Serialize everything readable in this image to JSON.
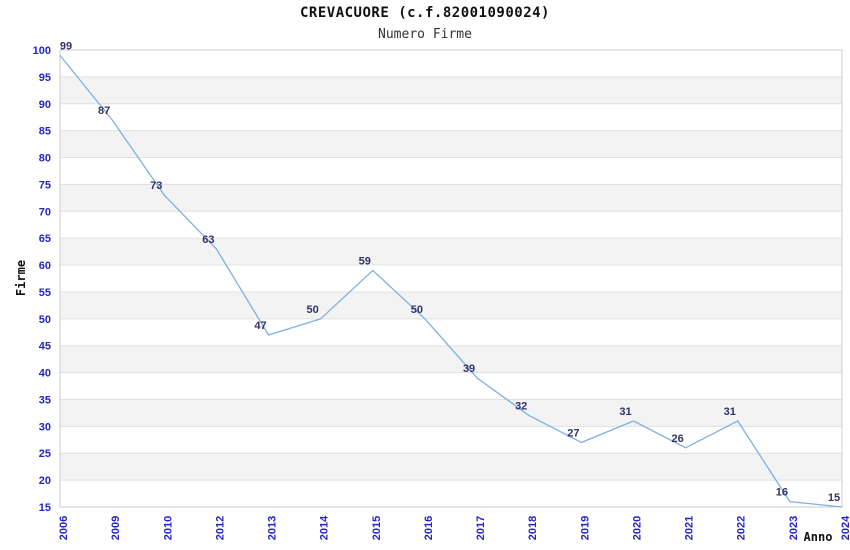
{
  "chart_data": {
    "type": "line",
    "title": "CREVACUORE (c.f.82001090024)",
    "subtitle": "Numero Firme",
    "xlabel": "Anno",
    "ylabel": "Firme",
    "x": [
      "2006",
      "2009",
      "2010",
      "2012",
      "2013",
      "2014",
      "2015",
      "2016",
      "2017",
      "2018",
      "2019",
      "2020",
      "2021",
      "2022",
      "2023",
      "2024"
    ],
    "series": [
      {
        "name": "Numero Firme",
        "values": [
          99,
          87,
          73,
          63,
          47,
          50,
          59,
          50,
          39,
          32,
          27,
          31,
          26,
          31,
          16,
          15
        ]
      }
    ],
    "ylim": [
      15,
      100
    ],
    "ytick_step": 5,
    "grid": "horizontal gridlines with alternating shaded bands",
    "legend": "none",
    "data_labels": "shown above each point",
    "colors": {
      "line": "#7fafe3",
      "tick_label": "#2323cc",
      "value_label": "#32326a",
      "band": "#f3f3f3",
      "grid": "#e0e0e0",
      "spine": "#cccccc",
      "title": "#111111",
      "background": "#ffffff"
    }
  }
}
